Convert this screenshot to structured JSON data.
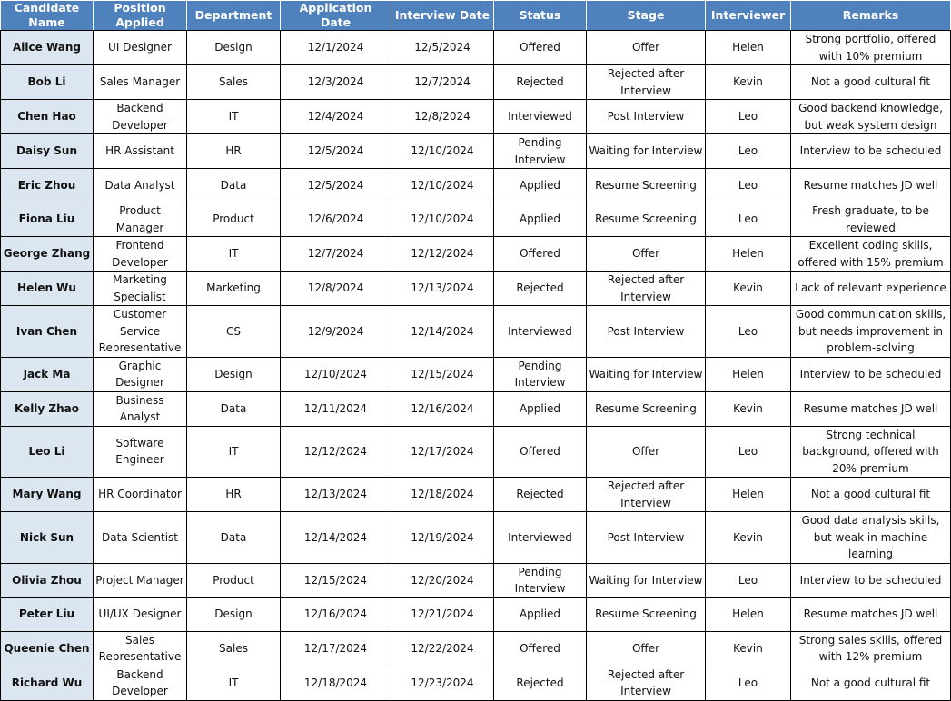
{
  "colors": {
    "header_bg": "#4f81bd",
    "name_col_bg": "#dce6f1"
  },
  "headers": [
    "Candidate Name",
    "Position Applied",
    "Department",
    "Application Date",
    "Interview Date",
    "Status",
    "Stage",
    "Interviewer",
    "Remarks"
  ],
  "rows": [
    [
      "Alice Wang",
      "UI Designer",
      "Design",
      "12/1/2024",
      "12/5/2024",
      "Offered",
      "Offer",
      "Helen",
      "Strong portfolio, offered with 10% premium"
    ],
    [
      "Bob Li",
      "Sales Manager",
      "Sales",
      "12/3/2024",
      "12/7/2024",
      "Rejected",
      "Rejected after Interview",
      "Kevin",
      "Not a good cultural fit"
    ],
    [
      "Chen Hao",
      "Backend Developer",
      "IT",
      "12/4/2024",
      "12/8/2024",
      "Interviewed",
      "Post Interview",
      "Leo",
      "Good backend knowledge, but weak system design"
    ],
    [
      "Daisy Sun",
      "HR Assistant",
      "HR",
      "12/5/2024",
      "12/10/2024",
      "Pending Interview",
      "Waiting for Interview",
      "Leo",
      "Interview to be scheduled"
    ],
    [
      "Eric Zhou",
      "Data Analyst",
      "Data",
      "12/5/2024",
      "12/10/2024",
      "Applied",
      "Resume Screening",
      "Leo",
      "Resume matches JD well"
    ],
    [
      "Fiona Liu",
      "Product Manager",
      "Product",
      "12/6/2024",
      "12/10/2024",
      "Applied",
      "Resume Screening",
      "Leo",
      "Fresh graduate, to be reviewed"
    ],
    [
      "George Zhang",
      "Frontend Developer",
      "IT",
      "12/7/2024",
      "12/12/2024",
      "Offered",
      "Offer",
      "Helen",
      "Excellent coding skills, offered with 15% premium"
    ],
    [
      "Helen Wu",
      "Marketing Specialist",
      "Marketing",
      "12/8/2024",
      "12/13/2024",
      "Rejected",
      "Rejected after Interview",
      "Kevin",
      "Lack of relevant experience"
    ],
    [
      "Ivan Chen",
      "Customer Service Representative",
      "CS",
      "12/9/2024",
      "12/14/2024",
      "Interviewed",
      "Post Interview",
      "Leo",
      "Good communication skills, but needs improvement in problem-solving"
    ],
    [
      "Jack Ma",
      "Graphic Designer",
      "Design",
      "12/10/2024",
      "12/15/2024",
      "Pending Interview",
      "Waiting for Interview",
      "Helen",
      "Interview to be scheduled"
    ],
    [
      "Kelly Zhao",
      "Business Analyst",
      "Data",
      "12/11/2024",
      "12/16/2024",
      "Applied",
      "Resume Screening",
      "Kevin",
      "Resume matches JD well"
    ],
    [
      "Leo Li",
      "Software Engineer",
      "IT",
      "12/12/2024",
      "12/17/2024",
      "Offered",
      "Offer",
      "Leo",
      "Strong technical background, offered with 20% premium"
    ],
    [
      "Mary Wang",
      "HR Coordinator",
      "HR",
      "12/13/2024",
      "12/18/2024",
      "Rejected",
      "Rejected after Interview",
      "Helen",
      "Not a good cultural fit"
    ],
    [
      "Nick Sun",
      "Data Scientist",
      "Data",
      "12/14/2024",
      "12/19/2024",
      "Interviewed",
      "Post Interview",
      "Kevin",
      "Good data analysis skills, but weak in machine learning"
    ],
    [
      "Olivia Zhou",
      "Project Manager",
      "Product",
      "12/15/2024",
      "12/20/2024",
      "Pending Interview",
      "Waiting for Interview",
      "Leo",
      "Interview to be scheduled"
    ],
    [
      "Peter Liu",
      "UI/UX Designer",
      "Design",
      "12/16/2024",
      "12/21/2024",
      "Applied",
      "Resume Screening",
      "Helen",
      "Resume matches JD well"
    ],
    [
      "Queenie Chen",
      "Sales Representative",
      "Sales",
      "12/17/2024",
      "12/22/2024",
      "Offered",
      "Offer",
      "Kevin",
      "Strong sales skills, offered with 12% premium"
    ],
    [
      "Richard Wu",
      "Backend Developer",
      "IT",
      "12/18/2024",
      "12/23/2024",
      "Rejected",
      "Rejected after Interview",
      "Leo",
      "Not a good cultural fit"
    ]
  ]
}
